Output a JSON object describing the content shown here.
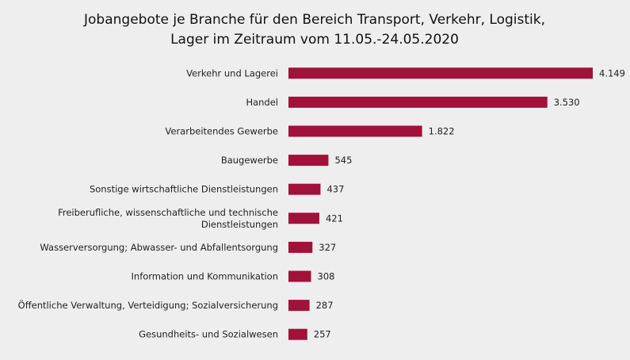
{
  "chart_data": {
    "type": "bar",
    "orientation": "horizontal",
    "title": [
      "Jobangebote je Branche für den Bereich Transport, Verkehr, Logistik,",
      "Lager im Zeitraum vom 11.05.-24.05.2020"
    ],
    "categories": [
      [
        "Verkehr und Lagerei"
      ],
      [
        "Handel"
      ],
      [
        "Verarbeitendes Gewerbe"
      ],
      [
        "Baugewerbe"
      ],
      [
        "Sonstige wirtschaftliche Dienstleistungen"
      ],
      [
        "Freiberufliche, wissenschaftliche und technische",
        "Dienstleistungen"
      ],
      [
        "Wasserversorgung; Abwasser- und Abfallentsorgung"
      ],
      [
        "Information und Kommunikation"
      ],
      [
        "Öffentliche Verwaltung, Verteidigung; Sozialversicherung"
      ],
      [
        "Gesundheits- und Sozialwesen"
      ]
    ],
    "values": [
      4149,
      3530,
      1822,
      545,
      437,
      421,
      327,
      308,
      287,
      257
    ],
    "value_labels": [
      "4.149",
      "3.530",
      "1.822",
      "545",
      "437",
      "421",
      "327",
      "308",
      "287",
      "257"
    ],
    "xlim": [
      0,
      4149
    ],
    "grid": false,
    "legend": "none",
    "bar_color": "#a0123a",
    "background_color": "#eeeeee"
  }
}
